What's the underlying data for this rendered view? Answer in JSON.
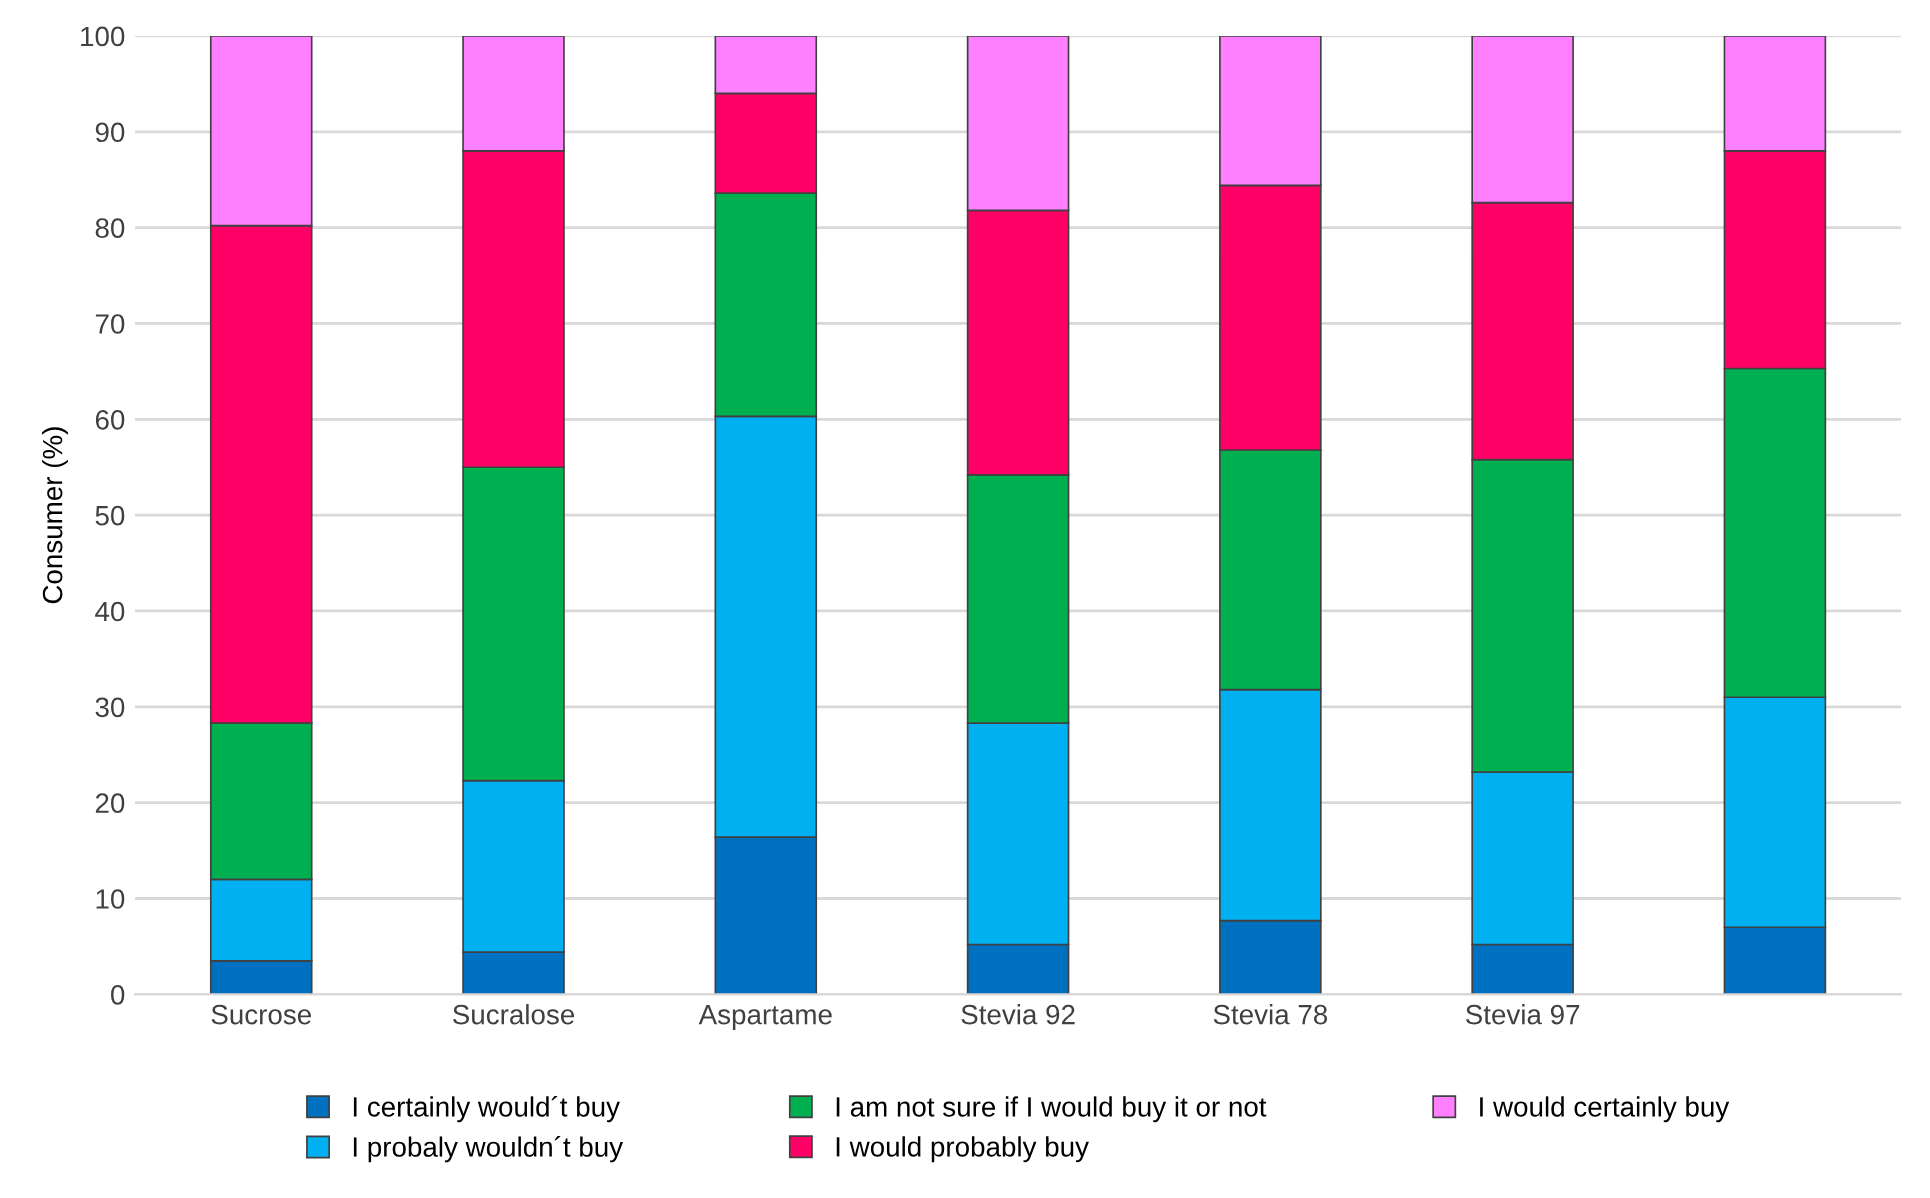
{
  "chart_data": {
    "type": "bar",
    "stacked": true,
    "ylabel": "Consumer (%)",
    "categories": [
      "Sucrose",
      "Sucralose",
      "Aspartame",
      "Stevia 92",
      "Stevia 78",
      "Stevia 97",
      null
    ],
    "series": [
      {
        "name": "I certainly would´t buy",
        "color": "#0070c0",
        "values": [
          3.5,
          4.4,
          16.4,
          5.2,
          7.7,
          5.2,
          7
        ]
      },
      {
        "name": "I probaly wouldn´t buy",
        "color": "#00b0f0",
        "values": [
          8.5,
          17.9,
          43.9,
          23.1,
          24.1,
          18,
          24
        ]
      },
      {
        "name": "I am not sure if I would buy it or not",
        "color": "#00b050",
        "values": [
          16.3,
          32.7,
          23.3,
          25.9,
          25,
          32.6,
          34.3
        ]
      },
      {
        "name": "I would probably buy",
        "color": "#ff0066",
        "values": [
          51.9,
          33,
          10.4,
          27.6,
          27.6,
          26.8,
          22.7
        ]
      },
      {
        "name": "I would certainly buy",
        "color": "#ff80ff",
        "values": [
          19.8,
          12,
          6,
          18.2,
          15.6,
          17.4,
          12
        ]
      }
    ],
    "ylim": [
      0,
      100
    ],
    "yticks": [
      0,
      10,
      20,
      30,
      40,
      50,
      60,
      70,
      80,
      90,
      100
    ],
    "grid": "y",
    "legend": "bottom"
  }
}
